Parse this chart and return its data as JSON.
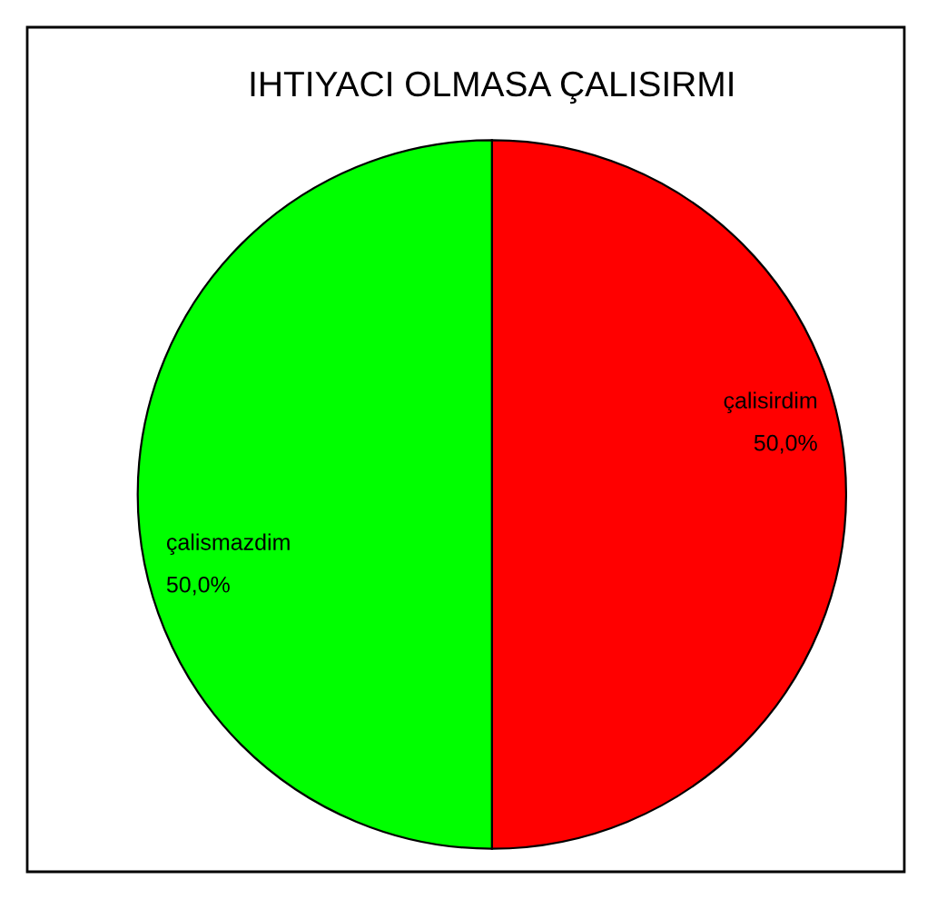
{
  "chart_data": {
    "type": "pie",
    "title": "IHTIYACI OLMASA ÇALISIRMI",
    "categories": [
      "çalisirdim",
      "çalismazdim"
    ],
    "values": [
      50,
      50
    ],
    "colors": [
      "#ff0000",
      "#00ff00"
    ],
    "value_labels": [
      "50,0%",
      "50,0%"
    ]
  }
}
